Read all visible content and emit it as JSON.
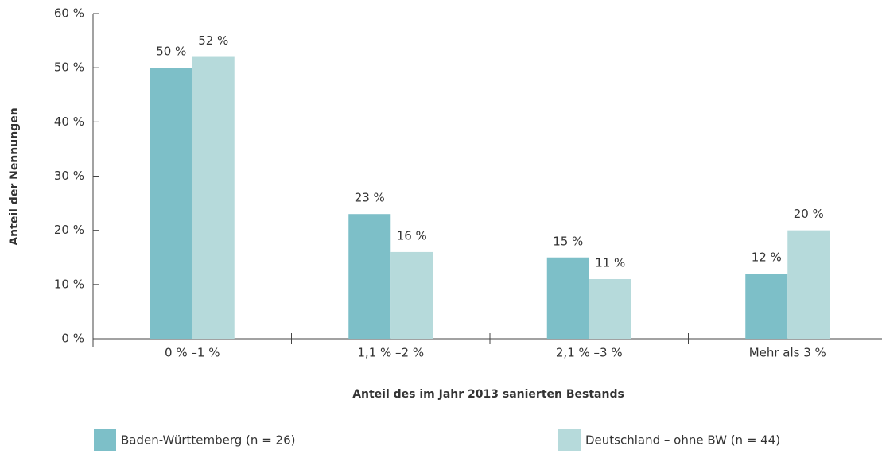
{
  "chart_data": {
    "type": "bar",
    "x_label": "Anteil des im Jahr 2013 sanierten Bestands",
    "y_label": "Anteil der Nennungen",
    "categories": [
      "0 % –1 %",
      "1,1 % –2 %",
      "2,1 % –3 %",
      "Mehr als 3 %"
    ],
    "series": [
      {
        "name": "Baden-Württemberg (n = 26)",
        "color": "#7dbfc8",
        "values": [
          50,
          23,
          15,
          12
        ],
        "value_labels": [
          "50 %",
          "23 %",
          "15 %",
          "12 %"
        ]
      },
      {
        "name": "Deutschland – ohne BW (n = 44)",
        "color": "#b6dadb",
        "values": [
          52,
          16,
          11,
          20
        ],
        "value_labels": [
          "52 %",
          "16 %",
          "11 %",
          "20 %"
        ]
      }
    ],
    "ylim": [
      0,
      60
    ],
    "yticks": [
      {
        "value": 0,
        "label": "0 %"
      },
      {
        "value": 10,
        "label": "10 %"
      },
      {
        "value": 20,
        "label": "20 %"
      },
      {
        "value": 30,
        "label": "30 %"
      },
      {
        "value": 40,
        "label": "40 %"
      },
      {
        "value": 50,
        "label": "50 %"
      },
      {
        "value": 60,
        "label": "60 %"
      }
    ],
    "grid": false
  }
}
